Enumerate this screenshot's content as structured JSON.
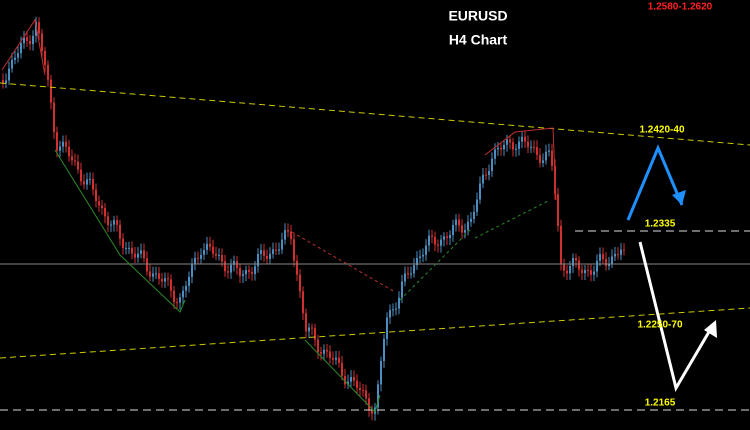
{
  "chart_data": {
    "type": "candlestick",
    "title": "EURUSD",
    "subtitle": "H4 Chart",
    "annotations": [
      "1.2580-1.2620",
      "1.2420-40",
      "1.2335",
      "1.2250-70",
      "1.2165"
    ]
  }
}
